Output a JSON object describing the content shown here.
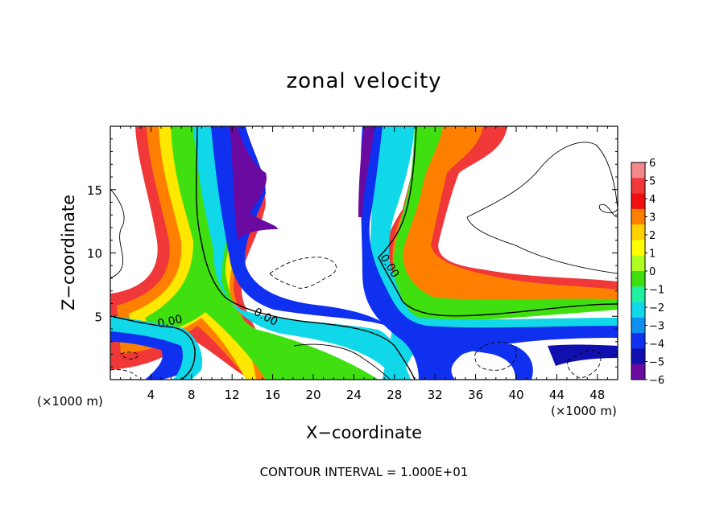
{
  "chart_data": {
    "type": "heatmap",
    "title": "zonal velocity",
    "xlabel": "X−coordinate",
    "ylabel": "Z−coordinate",
    "x_unit": "(×1000 m)",
    "footer": "CONTOUR INTERVAL = 1.000E+01",
    "xlim": [
      0,
      50
    ],
    "ylim": [
      0,
      20
    ],
    "x_ticks": [
      4,
      8,
      12,
      16,
      20,
      24,
      28,
      32,
      36,
      40,
      44,
      48
    ],
    "x_tick_labels": [
      "4",
      "8",
      "12",
      "16",
      "20",
      "24",
      "28",
      "32",
      "36",
      "40",
      "44",
      "48"
    ],
    "y_ticks": [
      5,
      10,
      15
    ],
    "y_tick_labels": [
      "5",
      "10",
      "15"
    ],
    "colorbar": {
      "levels": [
        6,
        5,
        4,
        3,
        2,
        1,
        0,
        -1,
        -2,
        -3,
        -4,
        -5,
        -6
      ],
      "labels": [
        "6",
        "5",
        "4",
        "3",
        "2",
        "1",
        "0",
        "−1",
        "−2",
        "−3",
        "−4",
        "−5",
        "−6"
      ],
      "colors": [
        "#f2888c",
        "#f03838",
        "#f01010",
        "#ff8000",
        "#ffd000",
        "#ffff00",
        "#b0ff20",
        "#40e010",
        "#20f0a0",
        "#10d8e8",
        "#1090f0",
        "#1030f0",
        "#1010b0",
        "#6a0aa0"
      ]
    },
    "contour_labels": [
      "0.00",
      "0.00",
      "0.00"
    ],
    "grid": false
  }
}
